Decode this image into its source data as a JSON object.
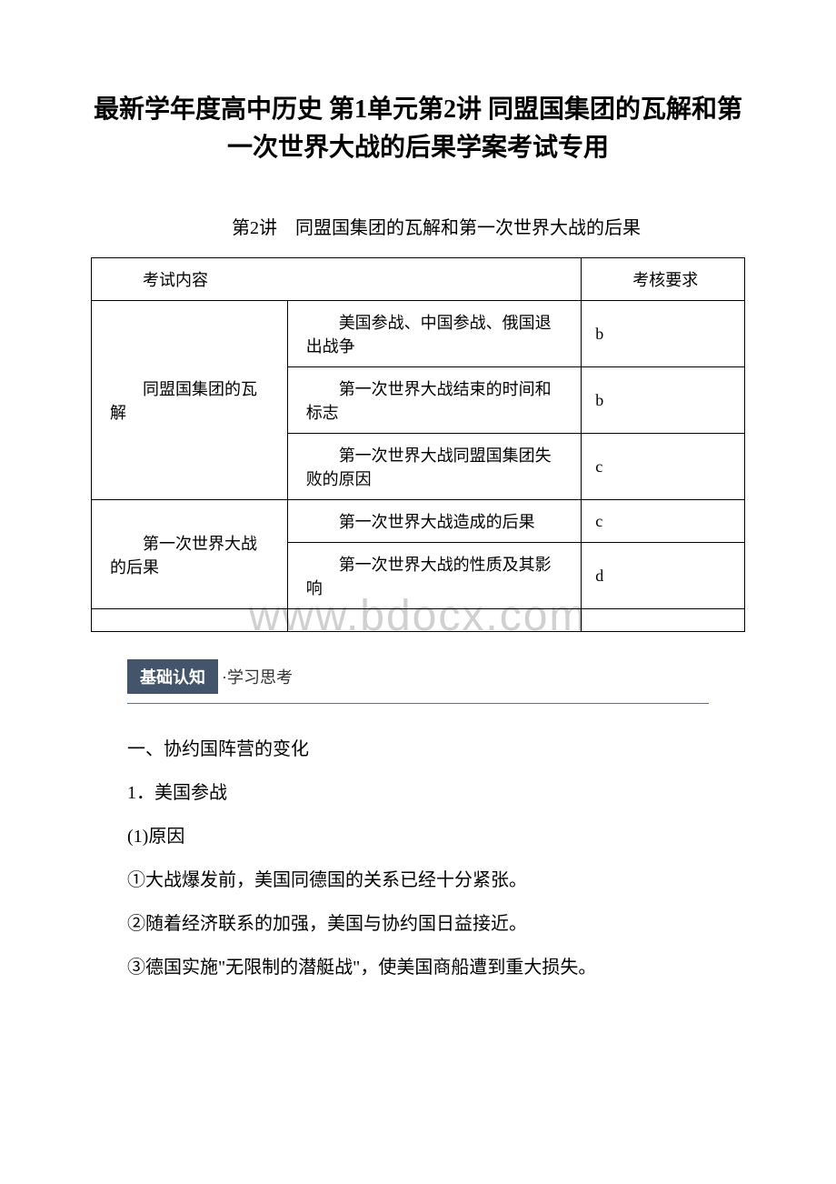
{
  "title": "最新学年度高中历史 第1单元第2讲 同盟国集团的瓦解和第一次世界大战的后果学案考试专用",
  "subtitle": "第2讲　同盟国集团的瓦解和第一次世界大战的后果",
  "watermark": "www.bdocx.com",
  "table": {
    "header": {
      "col1": "考试内容",
      "col2": "考核要求"
    },
    "rows": [
      {
        "category": "同盟国集团的瓦解",
        "rowspan": 3,
        "items": [
          {
            "text": "美国参战、中国参战、俄国退出战争",
            "level": "b"
          },
          {
            "text": "第一次世界大战结束的时间和标志",
            "level": "b"
          },
          {
            "text": "第一次世界大战同盟国集团失败的原因",
            "level": "c"
          }
        ]
      },
      {
        "category": "第一次世界大战的后果",
        "rowspan": 2,
        "items": [
          {
            "text": "第一次世界大战造成的后果",
            "level": "c"
          },
          {
            "text": "第一次世界大战的性质及其影响",
            "level": "d"
          }
        ]
      }
    ]
  },
  "section_badge": {
    "label": "基础认知",
    "suffix": "·学习思考"
  },
  "body": {
    "heading1": "一、协约国阵营的变化",
    "heading2": "1．美国参战",
    "heading3": "(1)原因",
    "point1": "①大战爆发前，美国同德国的关系已经十分紧张。",
    "point2": "②随着经济联系的加强，美国与协约国日益接近。",
    "point3": "③德国实施\"无限制的潜艇战\"，使美国商船遭到重大损失。"
  },
  "colors": {
    "badge_bg": "#44546a",
    "badge_text": "#ffffff",
    "divider": "#4472c4",
    "watermark": "#d0d0d0",
    "text": "#000000",
    "background": "#ffffff"
  },
  "fonts": {
    "title_size": 28,
    "subtitle_size": 20,
    "body_size": 20,
    "table_size": 18,
    "badge_size": 18
  }
}
